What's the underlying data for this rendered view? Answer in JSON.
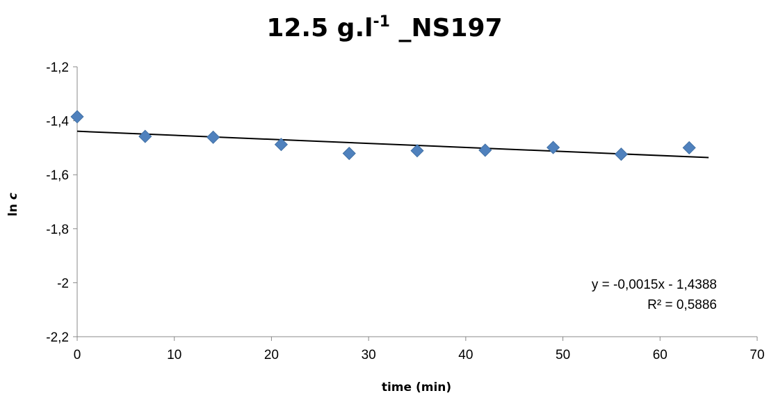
{
  "chart_data": {
    "type": "scatter",
    "title": {
      "main": "12.5 g.l",
      "superscript": "-1",
      "suffix": " _NS197"
    },
    "xlabel": "time (min)",
    "ylabel": {
      "prefix": "ln ",
      "italic": "c"
    },
    "xlim": [
      0,
      70
    ],
    "ylim": [
      -2.2,
      -1.2
    ],
    "x_ticks": [
      "0",
      "10",
      "20",
      "30",
      "40",
      "50",
      "60",
      "70"
    ],
    "x_tick_values": [
      0,
      10,
      20,
      30,
      40,
      50,
      60,
      70
    ],
    "y_ticks": [
      "-1,2",
      "-1,4",
      "-1,6",
      "-1,8",
      "-2",
      "-2,2"
    ],
    "y_tick_values": [
      -1.2,
      -1.4,
      -1.6,
      -1.8,
      -2.0,
      -2.2
    ],
    "grid": false,
    "series": [
      {
        "marker": "diamond",
        "color": "#4F81BD",
        "x": [
          0,
          7,
          14,
          21,
          28,
          35,
          42,
          49,
          56,
          63
        ],
        "y": [
          -1.385,
          -1.458,
          -1.461,
          -1.488,
          -1.521,
          -1.511,
          -1.509,
          -1.499,
          -1.524,
          -1.5
        ]
      }
    ],
    "trendline": {
      "type": "linear",
      "slope": -0.0015,
      "intercept": -1.4388,
      "x_range": [
        0,
        65
      ],
      "color": "#000000"
    },
    "annotations": [
      "y = -0,0015x - 1,4388",
      "R² = 0,5886"
    ]
  }
}
